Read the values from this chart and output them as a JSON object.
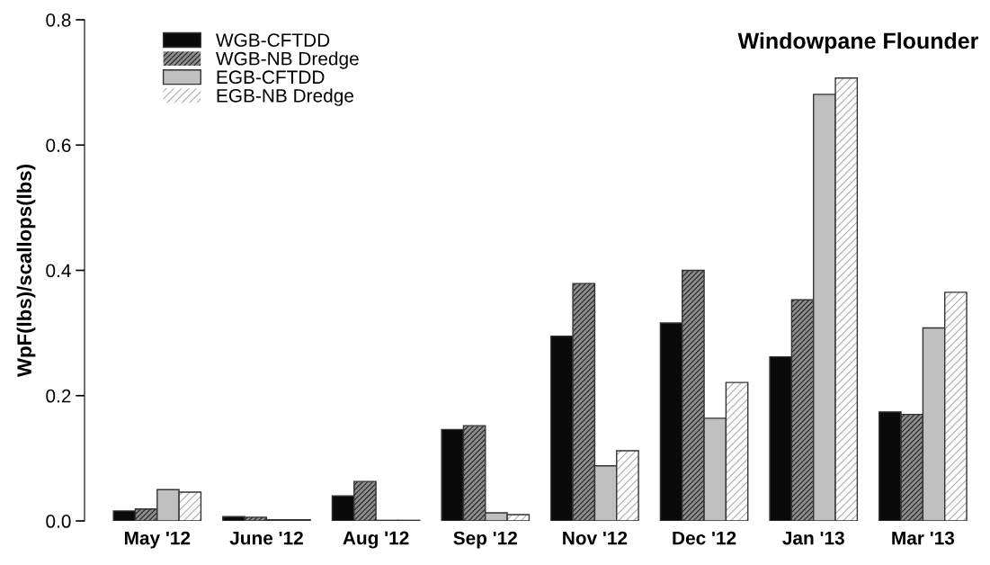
{
  "chart_data": {
    "type": "bar",
    "title": "Windowpane Flounder",
    "ylabel": "WpF(lbs)/scallops(lbs)",
    "categories": [
      "May '12",
      "June '12",
      "Aug '12",
      "Sep '12",
      "Nov '12",
      "Dec '12",
      "Jan '13",
      "Mar '13"
    ],
    "series": [
      {
        "name": "WGB-CFTDD",
        "color": "#0a0a0a",
        "values": [
          0.016,
          0.007,
          0.04,
          0.146,
          0.295,
          0.316,
          0.262,
          0.174
        ]
      },
      {
        "name": "WGB-NB Dredge",
        "color": "#8c8c8c",
        "values": [
          0.019,
          0.006,
          0.063,
          0.152,
          0.379,
          0.4,
          0.353,
          0.17
        ]
      },
      {
        "name": "EGB-CFTDD",
        "color": "#c0c0c0",
        "values": [
          0.05,
          0.002,
          0.001,
          0.013,
          0.088,
          0.164,
          0.681,
          0.308
        ]
      },
      {
        "name": "EGB-NB Dredge",
        "color": "#ffffff",
        "values": [
          0.046,
          0.002,
          0.001,
          0.01,
          0.112,
          0.221,
          0.707,
          0.365
        ]
      }
    ],
    "ylim": [
      0,
      0.8
    ],
    "yticks": [
      {
        "value": 0,
        "label": "0.0"
      },
      0.2,
      0.4,
      0.6,
      0.8
    ],
    "grid": false,
    "legend": "top left"
  }
}
